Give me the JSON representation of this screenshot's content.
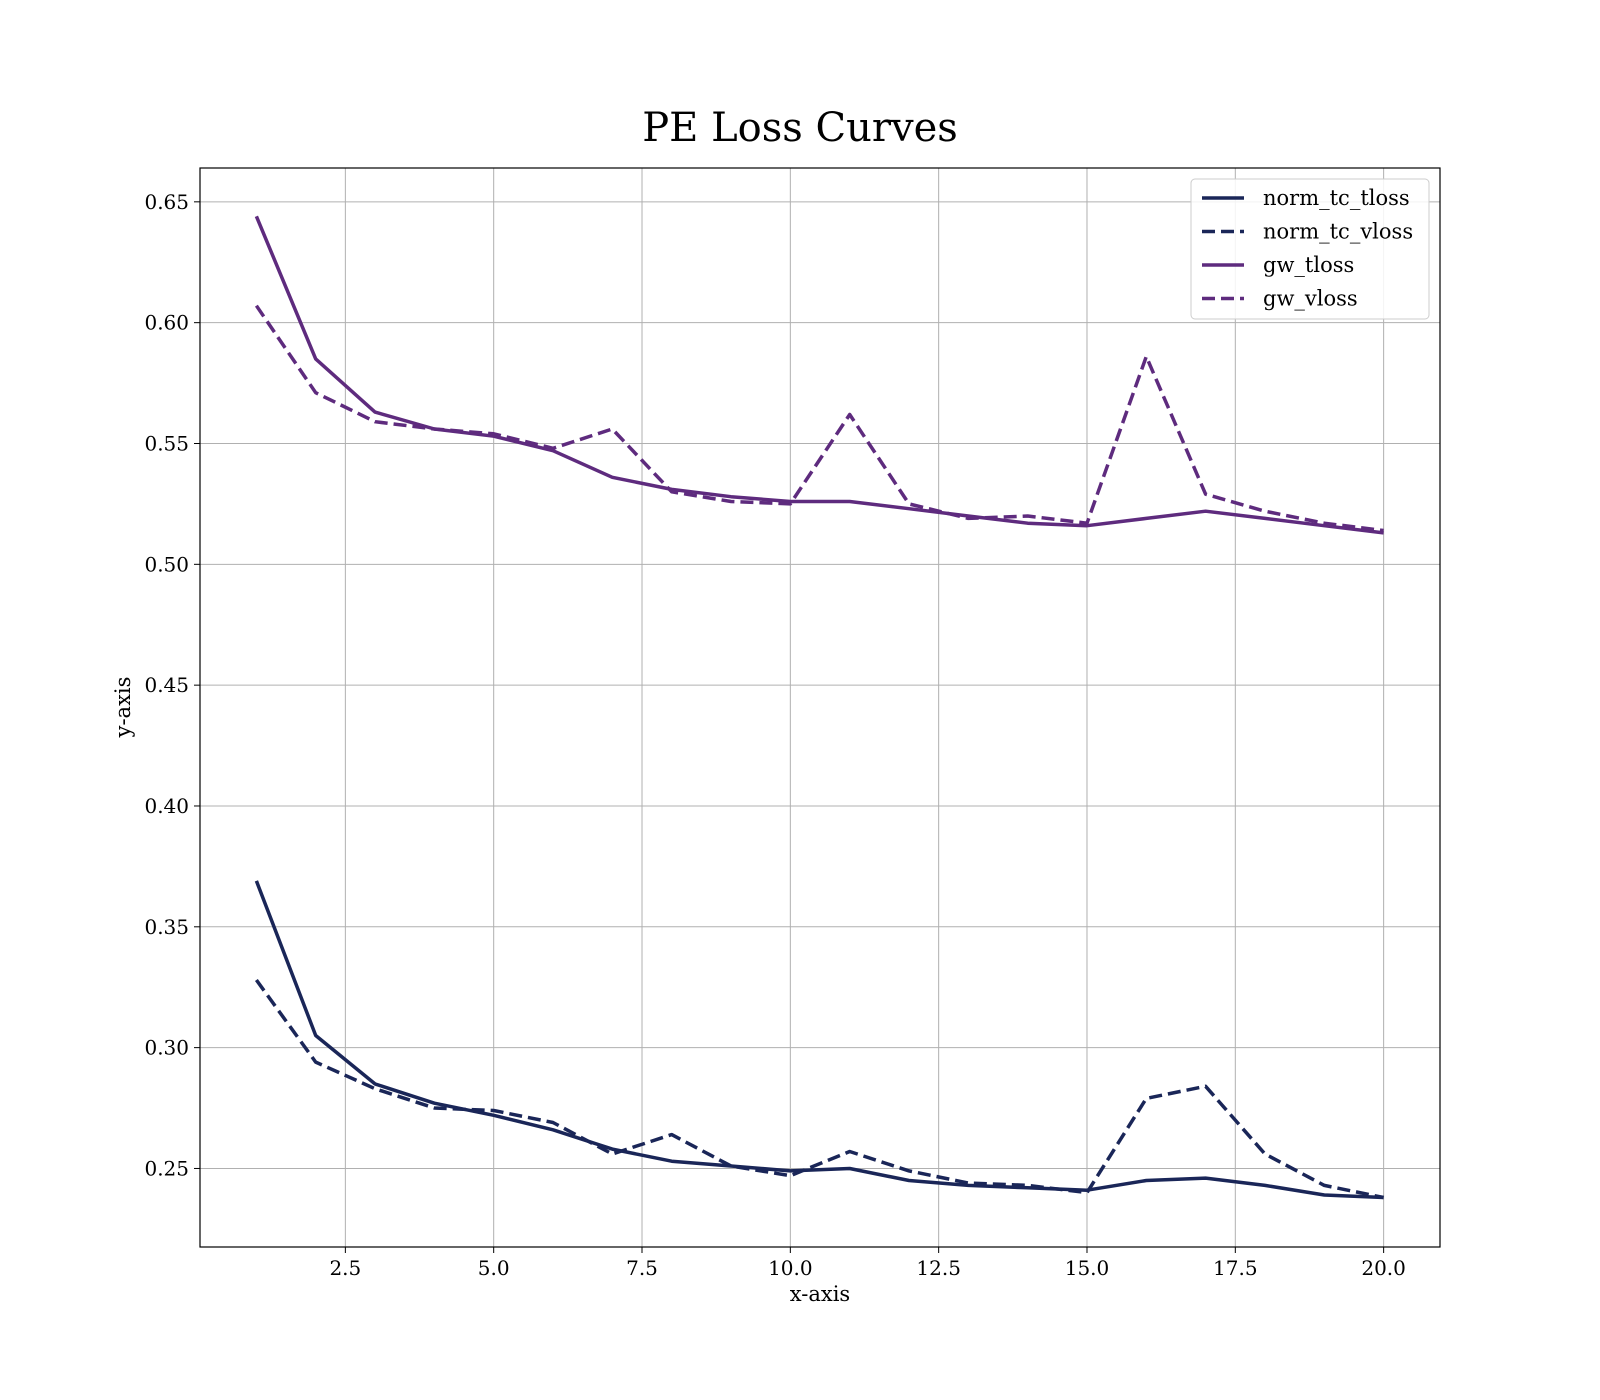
{
  "chart_data": {
    "type": "line",
    "title": "PE Loss Curves",
    "xlabel": "x-axis",
    "ylabel": "y-axis",
    "xlim": [
      0.05,
      20.95
    ],
    "ylim": [
      0.2175,
      0.664
    ],
    "x_ticks": [
      2.5,
      5.0,
      7.5,
      10.0,
      12.5,
      15.0,
      17.5,
      20.0
    ],
    "y_ticks": [
      0.25,
      0.3,
      0.35,
      0.4,
      0.45,
      0.5,
      0.55,
      0.6,
      0.65
    ],
    "grid": true,
    "legend_position": "upper-right",
    "x": [
      1,
      2,
      3,
      4,
      5,
      6,
      7,
      8,
      9,
      10,
      11,
      12,
      13,
      14,
      15,
      16,
      17,
      18,
      19,
      20
    ],
    "series": [
      {
        "name": "norm_tc_tloss",
        "color": "#1a2658",
        "dash": "solid",
        "values": [
          0.369,
          0.305,
          0.285,
          0.277,
          0.272,
          0.266,
          0.258,
          0.253,
          0.251,
          0.249,
          0.25,
          0.245,
          0.243,
          0.242,
          0.241,
          0.245,
          0.246,
          0.243,
          0.239,
          0.238
        ]
      },
      {
        "name": "norm_tc_vloss",
        "color": "#1a2658",
        "dash": "dashed",
        "values": [
          0.328,
          0.294,
          0.283,
          0.275,
          0.274,
          0.269,
          0.256,
          0.264,
          0.251,
          0.247,
          0.257,
          0.249,
          0.244,
          0.243,
          0.24,
          0.279,
          0.284,
          0.256,
          0.243,
          0.238
        ]
      },
      {
        "name": "gw_tloss",
        "color": "#5e2b7e",
        "dash": "solid",
        "values": [
          0.644,
          0.585,
          0.563,
          0.556,
          0.553,
          0.547,
          0.536,
          0.531,
          0.528,
          0.526,
          0.526,
          0.523,
          0.52,
          0.517,
          0.516,
          0.519,
          0.522,
          0.519,
          0.516,
          0.513
        ]
      },
      {
        "name": "gw_vloss",
        "color": "#5e2b7e",
        "dash": "dashed",
        "values": [
          0.607,
          0.571,
          0.559,
          0.556,
          0.554,
          0.548,
          0.556,
          0.53,
          0.526,
          0.525,
          0.562,
          0.525,
          0.519,
          0.52,
          0.517,
          0.586,
          0.529,
          0.522,
          0.517,
          0.514
        ]
      }
    ]
  }
}
